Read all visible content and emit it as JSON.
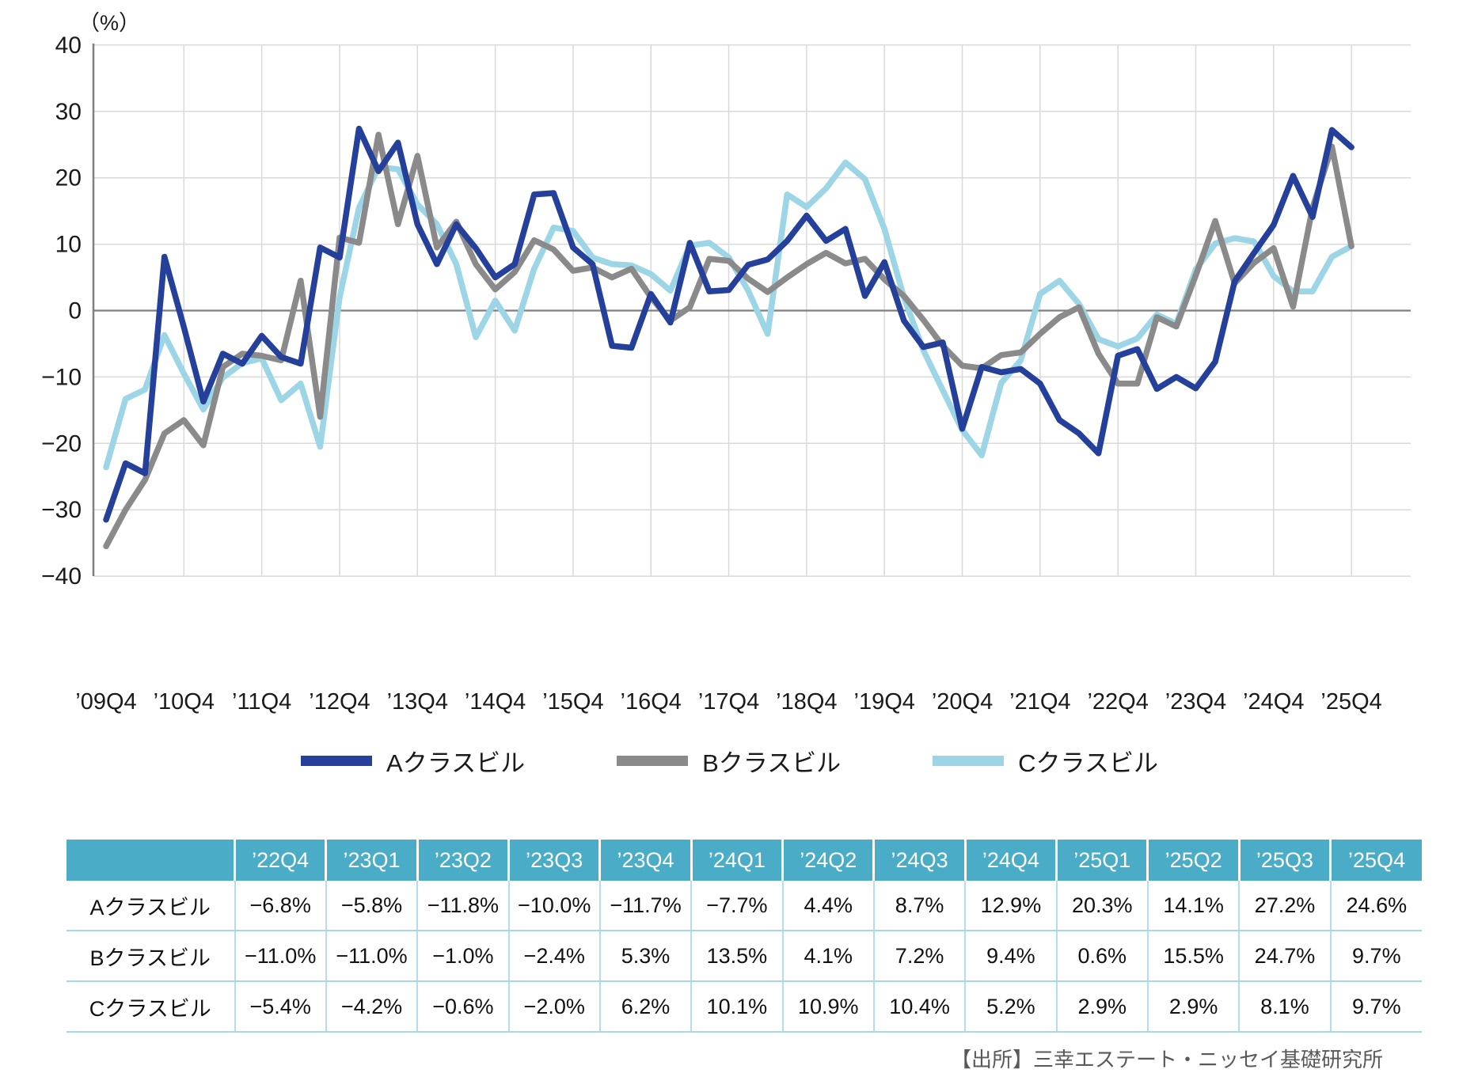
{
  "chart": {
    "unit_label": "（%）",
    "y_tick_labels": [
      "40",
      "30",
      "20",
      "10",
      "0",
      "−10",
      "−20",
      "−30",
      "−40"
    ],
    "colors": {
      "grid": "#d9d9d9",
      "zero_line": "#7f7f7f",
      "axis_line": "#7f7f7f",
      "tick_text": "#1a1a1a"
    }
  },
  "chart_data": {
    "type": "line",
    "title": "",
    "xlabel": "",
    "ylabel": "（%）",
    "ylim": [
      -40,
      40
    ],
    "y_tick_interval": 10,
    "grid": true,
    "legend_position": "bottom",
    "x": [
      "’09Q4",
      "’10Q1",
      "’10Q2",
      "’10Q3",
      "’10Q4",
      "’11Q1",
      "’11Q2",
      "’11Q3",
      "’11Q4",
      "’12Q1",
      "’12Q2",
      "’12Q3",
      "’12Q4",
      "’13Q1",
      "’13Q2",
      "’13Q3",
      "’13Q4",
      "’14Q1",
      "’14Q2",
      "’14Q3",
      "’14Q4",
      "’15Q1",
      "’15Q2",
      "’15Q3",
      "’15Q4",
      "’16Q1",
      "’16Q2",
      "’16Q3",
      "’16Q4",
      "’17Q1",
      "’17Q2",
      "’17Q3",
      "’17Q4",
      "’18Q1",
      "’18Q2",
      "’18Q3",
      "’18Q4",
      "’19Q1",
      "’19Q2",
      "’19Q3",
      "’19Q4",
      "’20Q1",
      "’20Q2",
      "’20Q3",
      "’20Q4",
      "’21Q1",
      "’21Q2",
      "’21Q3",
      "’21Q4",
      "’22Q1",
      "’22Q2",
      "’22Q3",
      "’22Q4",
      "’23Q1",
      "’23Q2",
      "’23Q3",
      "’23Q4",
      "’24Q1",
      "’24Q2",
      "’24Q3",
      "’24Q4",
      "’25Q1",
      "’25Q2",
      "’25Q3",
      "’25Q4"
    ],
    "x_axis_labels_shown": [
      "’09Q4",
      "’10Q4",
      "’11Q4",
      "’12Q4",
      "’13Q4",
      "’14Q4",
      "’15Q4",
      "’16Q4",
      "’17Q4",
      "’18Q4",
      "’19Q4",
      "’20Q4",
      "’21Q4",
      "’22Q4",
      "’23Q4",
      "’24Q4",
      "’25Q4"
    ],
    "series": [
      {
        "name": "Aクラスビル",
        "color": "#24409a",
        "values": [
          -31.5,
          -23.0,
          -24.5,
          8.1,
          -2.5,
          -13.7,
          -6.5,
          -8.0,
          -3.8,
          -7.0,
          -8.0,
          9.5,
          8.0,
          27.4,
          21.0,
          25.3,
          13.0,
          7.0,
          13.0,
          9.4,
          5.0,
          7.0,
          17.5,
          17.7,
          9.5,
          7.0,
          -5.3,
          -5.6,
          2.5,
          -1.8,
          10.2,
          2.9,
          3.1,
          6.9,
          7.7,
          10.5,
          14.3,
          10.5,
          12.3,
          2.2,
          7.3,
          -1.5,
          -5.5,
          -4.8,
          -17.8,
          -8.5,
          -9.3,
          -8.8,
          -11.0,
          -16.5,
          -18.5,
          -21.5,
          -6.8,
          -5.8,
          -11.8,
          -10.0,
          -11.7,
          -7.7,
          4.4,
          8.7,
          12.9,
          20.3,
          14.1,
          27.2,
          24.6
        ]
      },
      {
        "name": "Bクラスビル",
        "color": "#8a8a8a",
        "values": [
          -35.5,
          -30.0,
          -25.5,
          -18.5,
          -16.5,
          -20.3,
          -8.5,
          -6.5,
          -6.8,
          -7.5,
          4.5,
          -16.0,
          11.0,
          10.2,
          26.5,
          13.0,
          23.3,
          9.5,
          13.4,
          7.0,
          3.2,
          5.8,
          10.6,
          9.2,
          6.0,
          6.5,
          5.0,
          6.3,
          2.0,
          -1.5,
          0.5,
          7.8,
          7.5,
          4.8,
          2.8,
          5.0,
          7.0,
          8.7,
          7.1,
          7.8,
          4.7,
          2.2,
          -1.4,
          -5.3,
          -8.3,
          -8.7,
          -6.7,
          -6.3,
          -3.5,
          -1.0,
          0.5,
          -6.5,
          -11.0,
          -11.0,
          -1.0,
          -2.4,
          5.3,
          13.5,
          4.1,
          7.2,
          9.4,
          0.6,
          15.5,
          24.7,
          9.7
        ]
      },
      {
        "name": "Cクラスビル",
        "color": "#9cd5e6",
        "values": [
          -23.6,
          -13.3,
          -11.9,
          -3.7,
          -9.5,
          -14.9,
          -10.1,
          -7.9,
          -7.2,
          -13.5,
          -11.0,
          -20.5,
          2.0,
          15.5,
          21.6,
          21.3,
          16.0,
          13.0,
          7.0,
          -4.0,
          1.5,
          -3.0,
          6.3,
          12.5,
          12.0,
          8.0,
          7.0,
          6.8,
          5.5,
          3.0,
          9.8,
          10.2,
          8.0,
          3.0,
          -3.5,
          17.5,
          15.6,
          18.4,
          22.3,
          19.8,
          12.3,
          2.0,
          -6.0,
          -12.0,
          -18.0,
          -21.8,
          -10.9,
          -7.5,
          2.5,
          4.5,
          1.0,
          -4.3,
          -5.4,
          -4.2,
          -0.6,
          -2.0,
          6.2,
          10.1,
          10.9,
          10.4,
          5.2,
          2.9,
          2.9,
          8.1,
          9.7
        ]
      }
    ]
  },
  "legend": {
    "items": [
      {
        "label": "Aクラスビル",
        "color": "#24409a"
      },
      {
        "label": "Bクラスビル",
        "color": "#8a8a8a"
      },
      {
        "label": "Cクラスビル",
        "color": "#9cd5e6"
      }
    ]
  },
  "table": {
    "corner_label": "",
    "columns": [
      "’22Q4",
      "’23Q1",
      "’23Q2",
      "’23Q3",
      "’23Q4",
      "’24Q1",
      "’24Q2",
      "’24Q3",
      "’24Q4",
      "’25Q1",
      "’25Q2",
      "’25Q3",
      "’25Q4"
    ],
    "rows": [
      {
        "label": "Aクラスビル",
        "values": [
          "−6.8%",
          "−5.8%",
          "−11.8%",
          "−10.0%",
          "−11.7%",
          "−7.7%",
          "4.4%",
          "8.7%",
          "12.9%",
          "20.3%",
          "14.1%",
          "27.2%",
          "24.6%"
        ]
      },
      {
        "label": "Bクラスビル",
        "values": [
          "−11.0%",
          "−11.0%",
          "−1.0%",
          "−2.4%",
          "5.3%",
          "13.5%",
          "4.1%",
          "7.2%",
          "9.4%",
          "0.6%",
          "15.5%",
          "24.7%",
          "9.7%"
        ]
      },
      {
        "label": "Cクラスビル",
        "values": [
          "−5.4%",
          "−4.2%",
          "−0.6%",
          "−2.0%",
          "6.2%",
          "10.1%",
          "10.9%",
          "10.4%",
          "5.2%",
          "2.9%",
          "2.9%",
          "8.1%",
          "9.7%"
        ]
      }
    ],
    "header_bg": "#4aacc6",
    "grid_color": "#a6d7ea"
  },
  "source": {
    "text": "【出所】三幸エステート・ニッセイ基礎研究所"
  }
}
